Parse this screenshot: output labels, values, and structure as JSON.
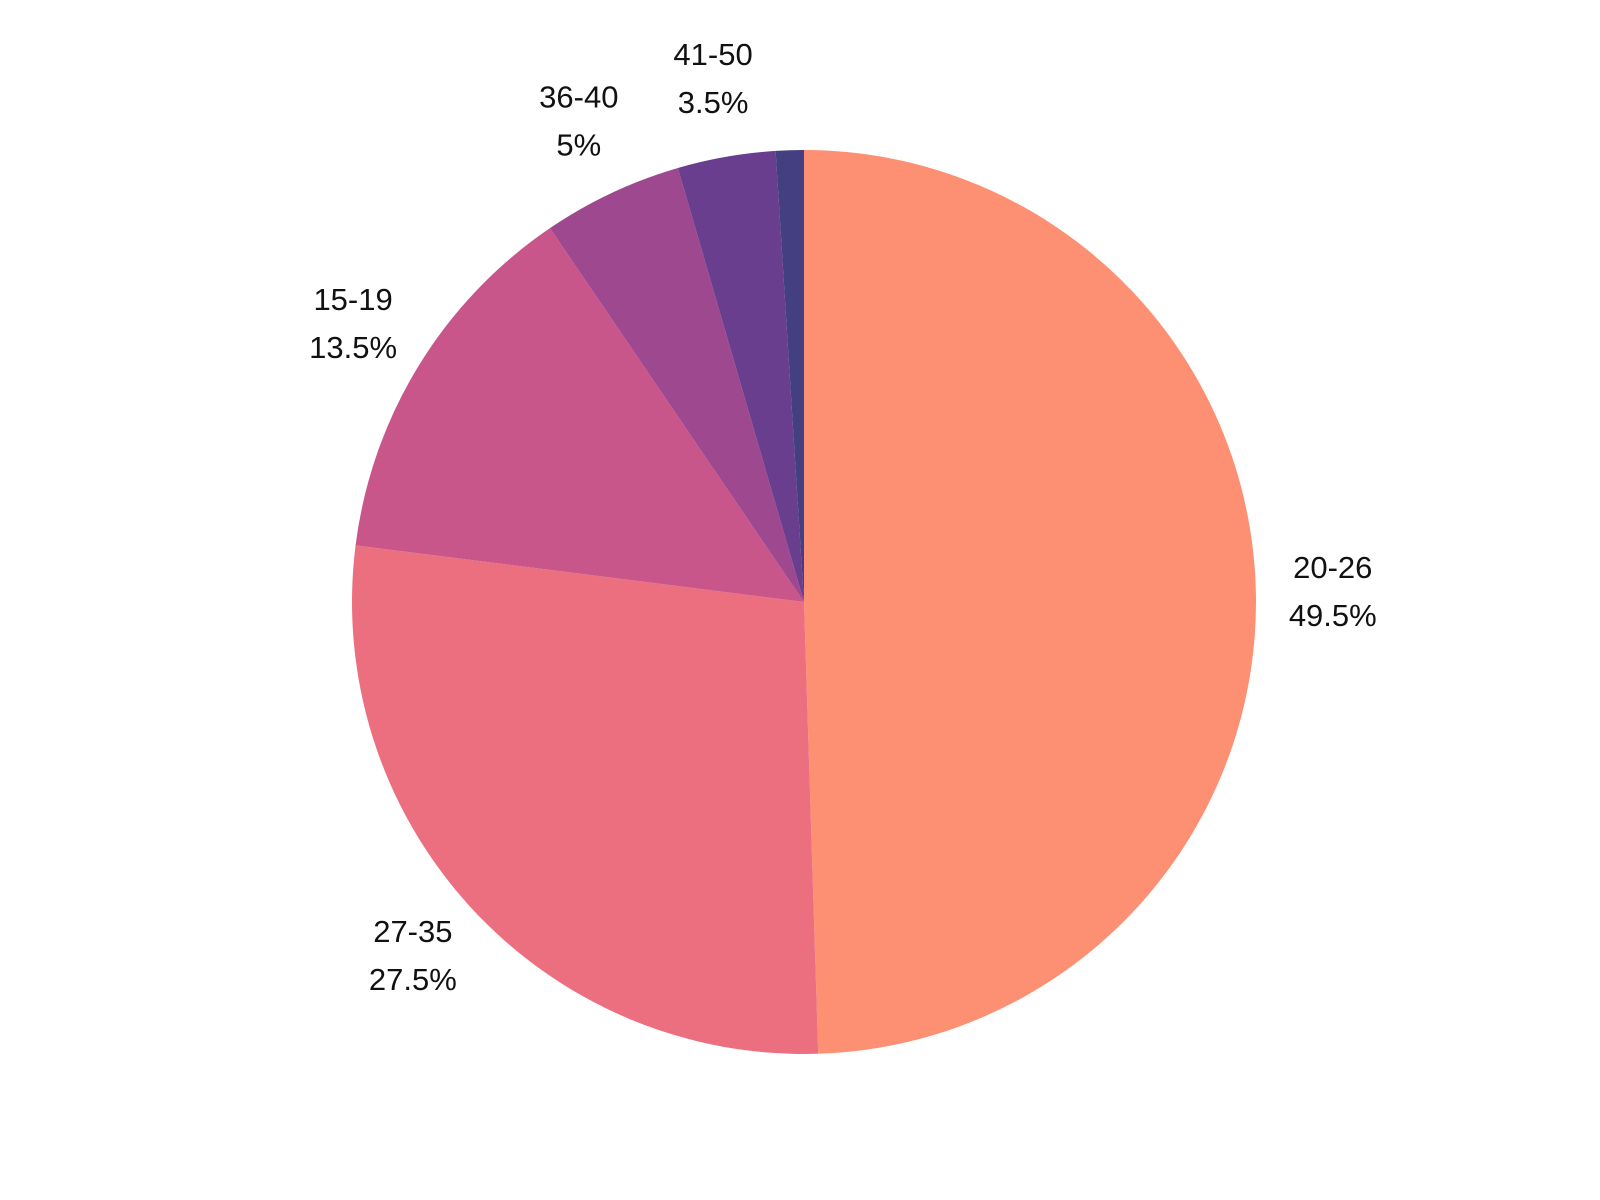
{
  "chart_data": {
    "type": "pie",
    "categories": [
      "20-26",
      "27-35",
      "15-19",
      "36-40",
      "41-50",
      null
    ],
    "values": [
      49.5,
      27.5,
      13.5,
      5,
      3.5,
      1
    ],
    "value_labels": [
      "49.5%",
      "27.5%",
      "13.5%",
      "5%",
      "3.5%",
      null
    ],
    "colors": [
      "#fd9073",
      "#eb6f7f",
      "#c9568a",
      "#9e488f",
      "#6a3e8e",
      "#433f80"
    ]
  }
}
